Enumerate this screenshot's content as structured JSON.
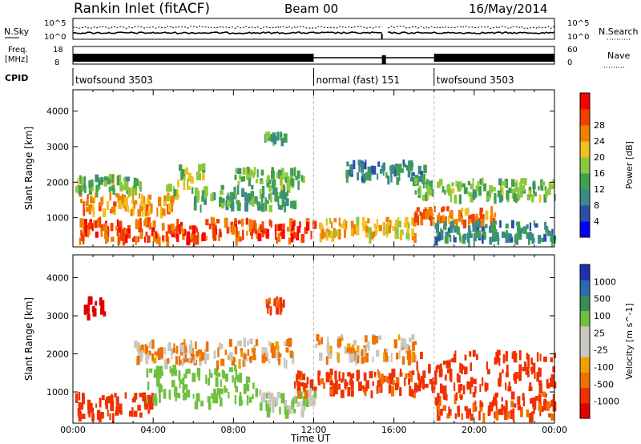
{
  "header": {
    "title": "Rankin Inlet (fitACF)",
    "beam": "Beam 00",
    "date": "16/May/2014"
  },
  "status_panels": {
    "nsky_label": "N.Sky",
    "nsearch_label": "N.Search",
    "freq_label_line1": "Freq.",
    "freq_label_line2": "[MHz]",
    "nave_label": "Nave",
    "cpid_label": "CPID",
    "noise_ticks_left": [
      "10^5",
      "10^0"
    ],
    "noise_ticks_right": [
      "10^5",
      "10^0"
    ],
    "freq_ticks": [
      "18",
      "8"
    ],
    "nave_ticks": [
      "60",
      "0"
    ],
    "cpid_segments": [
      {
        "label": "twofsound 3503",
        "start_hour": 0,
        "end_hour": 12
      },
      {
        "label": "normal (fast) 151",
        "start_hour": 12,
        "end_hour": 18
      },
      {
        "label": "twofsound 3503",
        "start_hour": 18,
        "end_hour": 24
      }
    ],
    "data_gap_hours": [
      15.4,
      15.6
    ]
  },
  "x_axis": {
    "label": "Time UT",
    "ticks": [
      "00:00",
      "04:00",
      "08:00",
      "12:00",
      "16:00",
      "20:00",
      "00:00"
    ],
    "range_hours": [
      0,
      24
    ]
  },
  "colors": {
    "power_scale": [
      "#0000ff",
      "#2a4faa",
      "#3a8a8a",
      "#40a050",
      "#8cc83c",
      "#f0c020",
      "#f08000",
      "#f04000",
      "#ff0000"
    ],
    "velocity_scale": [
      "#e00000",
      "#f03000",
      "#f07000",
      "#f0a000",
      "#c8c8c0",
      "#c8c8c0",
      "#70c040",
      "#3a8a5a",
      "#2a6ab0",
      "#2030b0"
    ],
    "ground_scatter": "#c8c8c0"
  },
  "chart_data": [
    {
      "type": "heatmap",
      "title": "",
      "xlabel": "",
      "ylabel": "Slant Range [km]",
      "x_range_hours": [
        0,
        24
      ],
      "ylim": [
        180,
        4600
      ],
      "yticks": [
        "1000",
        "2000",
        "3000",
        "4000"
      ],
      "colorbar": {
        "label": "Power [dB]",
        "ticks": [
          "4",
          "8",
          "12",
          "16",
          "20",
          "24",
          "28"
        ],
        "range": [
          0,
          32
        ]
      },
      "regions": [
        {
          "t": [
            0.3,
            12
          ],
          "r": [
            300,
            900
          ],
          "value": 26
        },
        {
          "t": [
            0.3,
            5
          ],
          "r": [
            1100,
            1600
          ],
          "value": 22
        },
        {
          "t": [
            0,
            3.5
          ],
          "r": [
            1700,
            2100
          ],
          "value": 14
        },
        {
          "t": [
            4.5,
            6.5
          ],
          "r": [
            1400,
            2400
          ],
          "value": 16
        },
        {
          "t": [
            6,
            11
          ],
          "r": [
            1200,
            1800
          ],
          "value": 12
        },
        {
          "t": [
            8,
            11.5
          ],
          "r": [
            1900,
            2300
          ],
          "value": 14
        },
        {
          "t": [
            9.5,
            10.5
          ],
          "r": [
            3100,
            3300
          ],
          "value": 12
        },
        {
          "t": [
            12,
            17
          ],
          "r": [
            400,
            900
          ],
          "value": 20
        },
        {
          "t": [
            13.5,
            17.5
          ],
          "r": [
            2000,
            2500
          ],
          "value": 10
        },
        {
          "t": [
            17,
            21
          ],
          "r": [
            800,
            1200
          ],
          "value": 24
        },
        {
          "t": [
            17,
            24
          ],
          "r": [
            1500,
            2000
          ],
          "value": 14
        },
        {
          "t": [
            18,
            24
          ],
          "r": [
            300,
            800
          ],
          "value": 10
        }
      ]
    },
    {
      "type": "heatmap",
      "title": "",
      "xlabel": "Time UT",
      "ylabel": "Slant Range [km]",
      "x_range_hours": [
        0,
        24
      ],
      "ylim": [
        180,
        4600
      ],
      "yticks": [
        "1000",
        "2000",
        "3000",
        "4000"
      ],
      "colorbar": {
        "label": "Velocity [m s^-1]",
        "ticks": [
          "1000",
          "500",
          "100",
          "25",
          "-25",
          "-100",
          "-500",
          "-1000"
        ],
        "range": [
          -1000,
          1000
        ]
      },
      "regions": [
        {
          "t": [
            0,
            4
          ],
          "r": [
            300,
            900
          ],
          "value": -300
        },
        {
          "t": [
            3.5,
            9
          ],
          "r": [
            600,
            1600
          ],
          "value": 300
        },
        {
          "t": [
            3,
            11
          ],
          "r": [
            1700,
            2300
          ],
          "value": 0
        },
        {
          "t": [
            9,
            12
          ],
          "r": [
            400,
            1000
          ],
          "value": 100
        },
        {
          "t": [
            11,
            17
          ],
          "r": [
            900,
            1500
          ],
          "value": -150
        },
        {
          "t": [
            12,
            17
          ],
          "r": [
            1800,
            2400
          ],
          "value": 0
        },
        {
          "t": [
            17,
            24
          ],
          "r": [
            1000,
            2000
          ],
          "value": -300
        },
        {
          "t": [
            18,
            24
          ],
          "r": [
            300,
            900
          ],
          "value": -150
        },
        {
          "t": [
            9.5,
            10.5
          ],
          "r": [
            3100,
            3400
          ],
          "value": -150
        },
        {
          "t": [
            0.5,
            1.5
          ],
          "r": [
            2800,
            3400
          ],
          "value": -600
        }
      ]
    }
  ]
}
